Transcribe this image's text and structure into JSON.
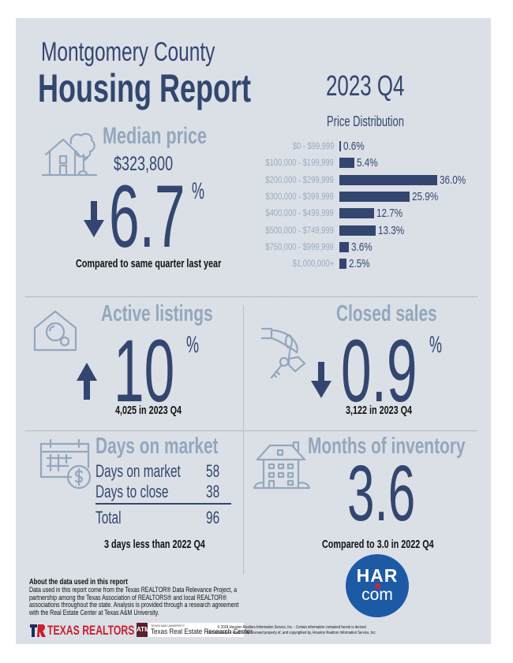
{
  "header": {
    "county": "Montgomery County",
    "title": "Housing Report",
    "period": "2023 Q4"
  },
  "median_price": {
    "title": "Median price",
    "value": "$323,800",
    "direction": "down",
    "change": "6.7",
    "unit": "%",
    "note": "Compared to same quarter last year",
    "icon": "house-tree-icon"
  },
  "chart_data": {
    "type": "bar",
    "orientation": "horizontal",
    "title": "Price Distribution",
    "categories": [
      "$0 - $99,999",
      "$100,000 - $199,999",
      "$200,000 - $299,999",
      "$300,000 - $399,999",
      "$400,000 - $499,999",
      "$500,000 - $749,999",
      "$750,000 - $999,999",
      "$1,000,000+"
    ],
    "values": [
      0.6,
      5.4,
      36.0,
      25.9,
      12.7,
      13.3,
      3.6,
      2.5
    ],
    "value_labels": [
      "0.6%",
      "5.4%",
      "36.0%",
      "25.9%",
      "12.7%",
      "13.3%",
      "3.6%",
      "2.5%"
    ],
    "xlabel": "",
    "ylabel": "",
    "xlim": [
      0,
      36.0
    ],
    "grid": false,
    "legend": "none"
  },
  "active_listings": {
    "title": "Active listings",
    "direction": "up",
    "change": "10",
    "unit": "%",
    "note": "4,025 in 2023 Q4",
    "icon": "house-search-icon"
  },
  "closed_sales": {
    "title": "Closed sales",
    "direction": "down",
    "change": "0.9",
    "unit": "%",
    "note": "3,122 in 2023 Q4",
    "icon": "hand-keys-icon"
  },
  "days_on_market": {
    "title": "Days on market",
    "rows": [
      {
        "label": "Days on market",
        "value": "58"
      },
      {
        "label": "Days to close",
        "value": "38"
      }
    ],
    "total_label": "Total",
    "total_value": "96",
    "note": "3 days less than 2022 Q4",
    "icon": "calendar-dollar-icon"
  },
  "months_inventory": {
    "title": "Months of inventory",
    "value": "3.6",
    "note": "Compared to 3.0 in 2022 Q4",
    "icon": "building-icon"
  },
  "about": {
    "heading": "About the data used in this report",
    "lines": [
      "Data used in this report come from the Texas REALTOR® Data Relevance Project, a",
      "partnership among the Texas Association of REALTORS® and local REALTOR®",
      "associations throughout the state. Analysis is provided through a research agreement",
      "with the Real Estate Center at Texas A&M University."
    ]
  },
  "logos": {
    "texas_realtors": "TEXAS REALTORS",
    "tamu_small": "TEXAS A&M UNIVERSITY",
    "tamu_center": "Texas Real Estate Research Center",
    "har_top": "HAR",
    "har_bottom": "com"
  },
  "copyright": {
    "line1": "© 2024 Houston Realtors Information Service, Inc. - Certain information contained herein is derived",
    "line2": "from information which is the licensed property of, and copyrighted by, Houston Realtors Information Service, Inc."
  },
  "colors": {
    "navy": "#33466f",
    "light_blue": "#93a7bd",
    "background": "#dbe0e7",
    "har_blue": "#1d5aa6",
    "har_red": "#d5202a",
    "realtors_red": "#c8202f",
    "tamu_maroon": "#5c1f2e"
  }
}
